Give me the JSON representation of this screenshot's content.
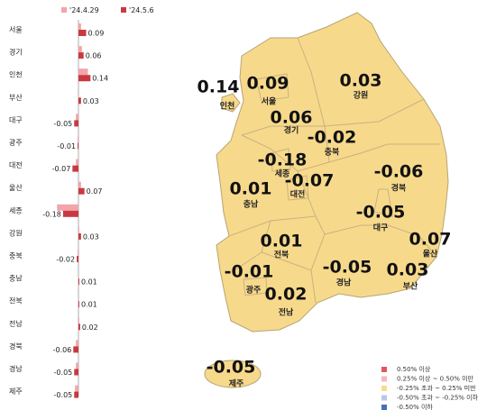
{
  "chart_data": {
    "type": "hbar",
    "categories": [
      "서울",
      "경기",
      "인천",
      "부산",
      "대구",
      "광주",
      "대전",
      "울산",
      "세종",
      "강원",
      "충북",
      "충남",
      "전북",
      "전남",
      "경북",
      "경남",
      "제주"
    ],
    "series": [
      {
        "name": "'24.4.29",
        "color": "#f2a5aa",
        "values": [
          0.03,
          0.04,
          0.11,
          0.0,
          -0.03,
          -0.01,
          -0.03,
          0.03,
          -0.25,
          0.01,
          -0.01,
          0.0,
          0.0,
          0.01,
          -0.03,
          -0.03,
          -0.04
        ]
      },
      {
        "name": "'24.5.6",
        "color": "#c9393f",
        "values": [
          0.09,
          0.06,
          0.14,
          0.03,
          -0.05,
          -0.01,
          -0.07,
          0.07,
          -0.18,
          0.03,
          -0.02,
          0.01,
          0.01,
          0.02,
          -0.06,
          -0.05,
          -0.05
        ]
      }
    ]
  },
  "map": {
    "regions": [
      {
        "name": "인천",
        "value": 0.14
      },
      {
        "name": "서울",
        "value": 0.09
      },
      {
        "name": "강원",
        "value": 0.03
      },
      {
        "name": "경기",
        "value": 0.06
      },
      {
        "name": "충북",
        "value": -0.02
      },
      {
        "name": "세종",
        "value": -0.18
      },
      {
        "name": "대전",
        "value": -0.07
      },
      {
        "name": "경북",
        "value": -0.06
      },
      {
        "name": "충남",
        "value": 0.01
      },
      {
        "name": "대구",
        "value": -0.05
      },
      {
        "name": "울산",
        "value": 0.07
      },
      {
        "name": "전북",
        "value": 0.01
      },
      {
        "name": "광주",
        "value": -0.01
      },
      {
        "name": "경남",
        "value": -0.05
      },
      {
        "name": "부산",
        "value": 0.03
      },
      {
        "name": "전남",
        "value": 0.02
      },
      {
        "name": "제주",
        "value": -0.05
      }
    ],
    "legend": [
      {
        "label": "0.50% 이상",
        "color": "#e2575e"
      },
      {
        "label": "0.25% 이상 ~ 0.50% 미만",
        "color": "#f4b9bc"
      },
      {
        "label": "-0.25% 초과 ~ 0.25% 미만",
        "color": "#f7dc8f"
      },
      {
        "label": "-0.50% 초과 ~ -0.25% 이하",
        "color": "#b7c8e8"
      },
      {
        "label": "-0.50% 이하",
        "color": "#4a6fb8"
      }
    ]
  }
}
